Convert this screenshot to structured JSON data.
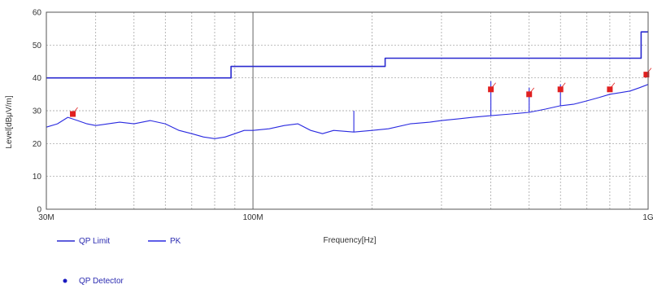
{
  "chart_data": {
    "type": "line",
    "xlabel": "Frequency[Hz]",
    "ylabel": "Level[dBμV/m]",
    "x_scale": "log",
    "xlim": [
      30000000,
      1000000000
    ],
    "ylim": [
      0,
      60
    ],
    "y_ticks": [
      "0",
      "10",
      "20",
      "30",
      "40",
      "50",
      "60"
    ],
    "x_ticks": [
      {
        "value": 30000000,
        "label": "30M"
      },
      {
        "value": 100000000,
        "label": "100M"
      },
      {
        "value": 1000000000,
        "label": "1G"
      }
    ],
    "grid": true,
    "colors": {
      "trace": "#2a2ae0",
      "limit": "#2a2ad0",
      "marker": "#e02020",
      "grid": "#999999"
    },
    "series": [
      {
        "name": "QP Limit",
        "kind": "step",
        "x": [
          30000000,
          88000000,
          88000000,
          216000000,
          216000000,
          960000000,
          960000000,
          1000000000
        ],
        "y": [
          40,
          40,
          43.5,
          43.5,
          46,
          46,
          54,
          54
        ]
      },
      {
        "name": "PK",
        "kind": "line",
        "x": [
          30000000,
          32000000,
          34000000,
          36000000,
          38000000,
          40000000,
          43000000,
          46000000,
          50000000,
          55000000,
          60000000,
          65000000,
          70000000,
          75000000,
          80000000,
          85000000,
          90000000,
          95000000,
          100000000,
          110000000,
          120000000,
          130000000,
          140000000,
          150000000,
          160000000,
          180000000,
          200000000,
          220000000,
          250000000,
          280000000,
          300000000,
          330000000,
          360000000,
          400000000,
          450000000,
          500000000,
          550000000,
          600000000,
          650000000,
          700000000,
          750000000,
          800000000,
          850000000,
          900000000,
          950000000,
          1000000000
        ],
        "y": [
          25,
          26,
          28,
          27,
          26,
          25.5,
          26,
          26.5,
          26,
          27,
          26,
          24,
          23,
          22,
          21.5,
          22,
          23,
          24,
          24,
          24.5,
          25.5,
          26,
          24,
          23,
          24,
          23.5,
          24,
          24.5,
          26,
          26.5,
          27,
          27.5,
          28,
          28.5,
          29,
          29.5,
          30.5,
          31.5,
          32,
          33,
          34,
          35,
          35.5,
          36,
          37,
          38
        ]
      },
      {
        "name": "QP Detector",
        "kind": "markers",
        "x": [
          35000000,
          400000000,
          500000000,
          600000000,
          800000000,
          990000000
        ],
        "y": [
          29,
          36.5,
          35,
          36.5,
          36.5,
          41
        ]
      }
    ],
    "spikes": {
      "x": [
        180000000,
        400000000,
        500000000,
        600000000
      ],
      "y": [
        30,
        39,
        37,
        38
      ]
    }
  },
  "legend": {
    "qp_limit_label": "QP Limit",
    "pk_label": "PK",
    "qp_detector_label": "QP Detector",
    "xlabel": "Frequency[Hz]"
  }
}
